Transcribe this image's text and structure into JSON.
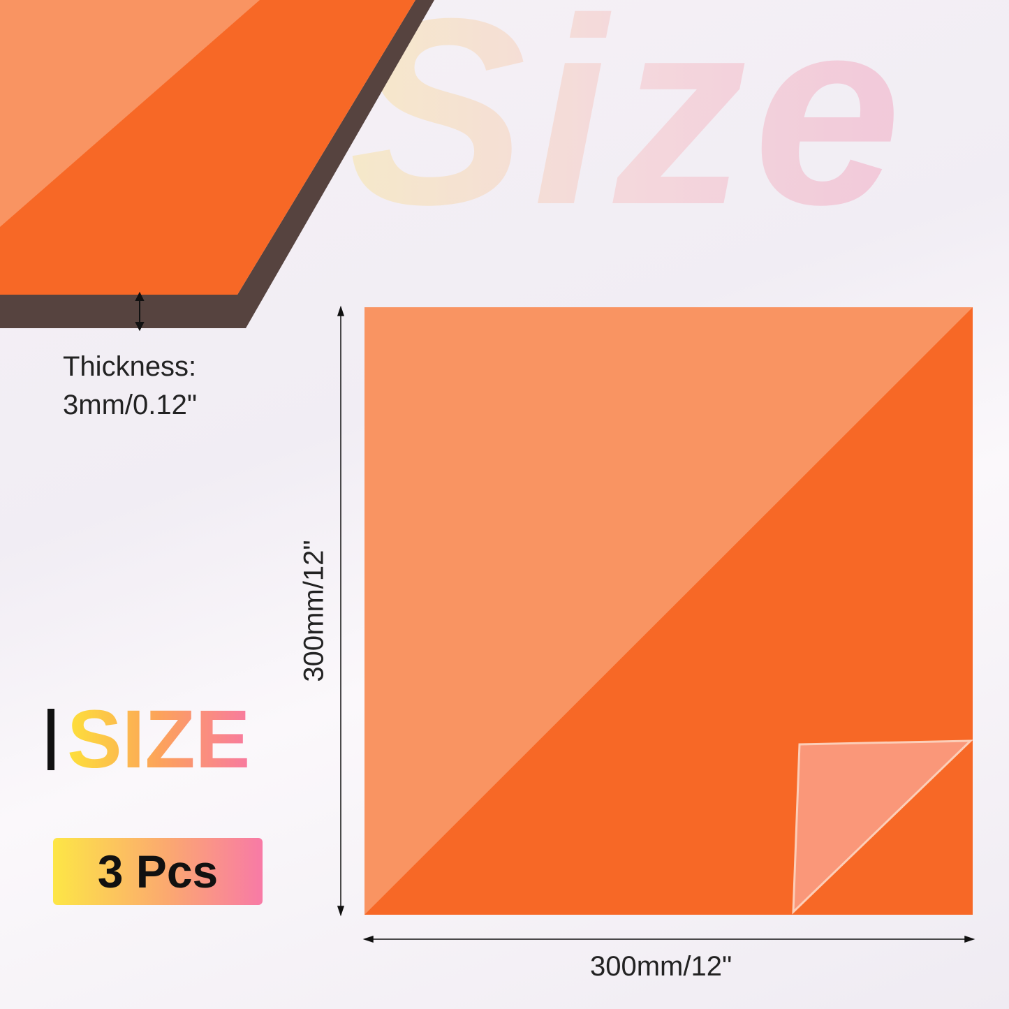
{
  "background_word": "Size",
  "thickness": {
    "label": "Thickness:",
    "value": "3mm/0.12\""
  },
  "dimensions": {
    "width": "300mm/12\"",
    "height": "300mm/12\""
  },
  "logo": {
    "text": "SIZE"
  },
  "badge": {
    "text": "3 Pcs"
  },
  "colors": {
    "sheet": "#f76826",
    "sheet_light": "#f99462",
    "edge": "#56433f"
  }
}
